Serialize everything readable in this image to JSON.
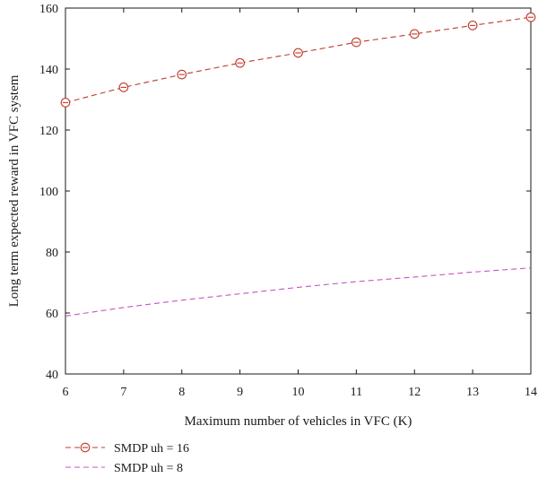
{
  "chart_data": {
    "type": "line",
    "title": "",
    "xlabel": "Maximum number of vehicles in VFC (K)",
    "ylabel": "Long term expected reward in VFC system",
    "xlim": [
      6,
      14
    ],
    "ylim": [
      40,
      160
    ],
    "x_ticks": [
      6,
      7,
      8,
      9,
      10,
      11,
      12,
      13,
      14
    ],
    "y_ticks": [
      40,
      60,
      80,
      100,
      120,
      140,
      160
    ],
    "grid": false,
    "legend_position": "bottom-left",
    "x": [
      6,
      7,
      8,
      9,
      10,
      11,
      12,
      13,
      14
    ],
    "series": [
      {
        "name": "SMDP uh = 16",
        "color": "#c0392b",
        "line_style": "dashed",
        "marker": "circle",
        "values": [
          129,
          134,
          138.2,
          142,
          145.3,
          148.8,
          151.5,
          154.3,
          157
        ]
      },
      {
        "name": "SMDP uh = 8",
        "color": "#c455c4",
        "line_style": "dashed",
        "marker": "none",
        "values": [
          59,
          61.8,
          64.2,
          66.3,
          68.4,
          70.3,
          71.8,
          73.4,
          74.8
        ]
      }
    ]
  }
}
